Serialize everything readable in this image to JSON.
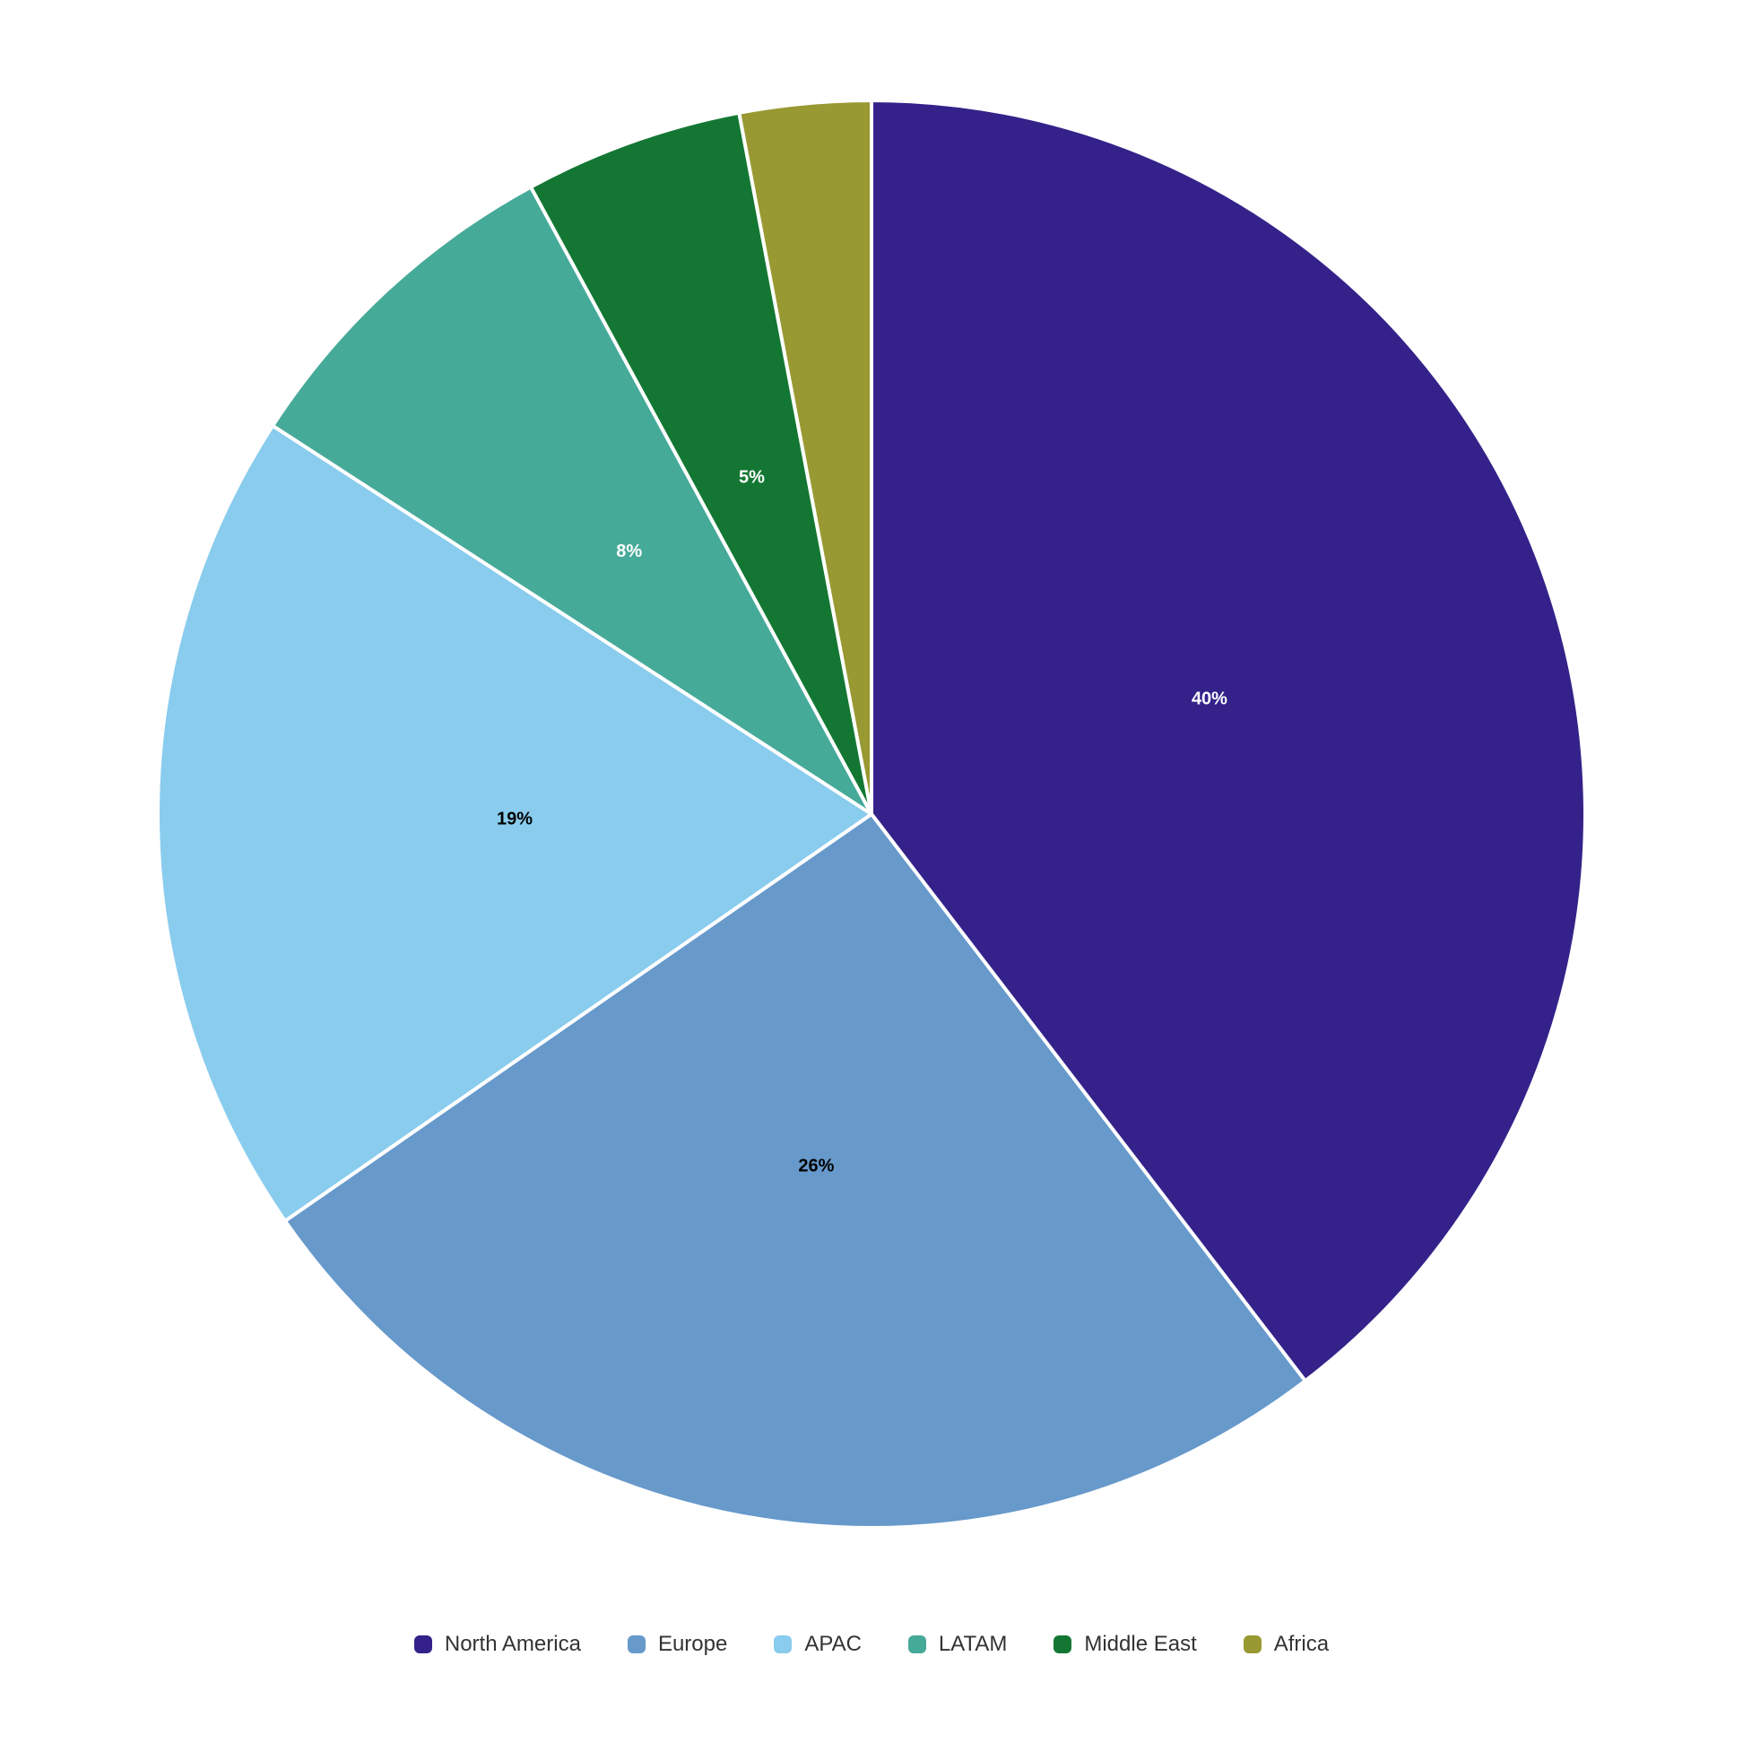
{
  "chart_data": {
    "type": "pie",
    "categories": [
      "North America",
      "Europe",
      "APAC",
      "LATAM",
      "Middle East",
      "Africa"
    ],
    "values": [
      40,
      26,
      19,
      8,
      5,
      3
    ],
    "value_labels": [
      "40%",
      "26%",
      "19%",
      "8%",
      "5%",
      null
    ],
    "colors": [
      "#34228a",
      "#6799cb",
      "#89ccee",
      "#46aa99",
      "#137733",
      "#999933"
    ],
    "label_colors": [
      "#ffffff",
      "#000000",
      "#000000",
      "#ffffff",
      "#ffffff",
      "#ffffff"
    ],
    "legend": "bottom"
  }
}
